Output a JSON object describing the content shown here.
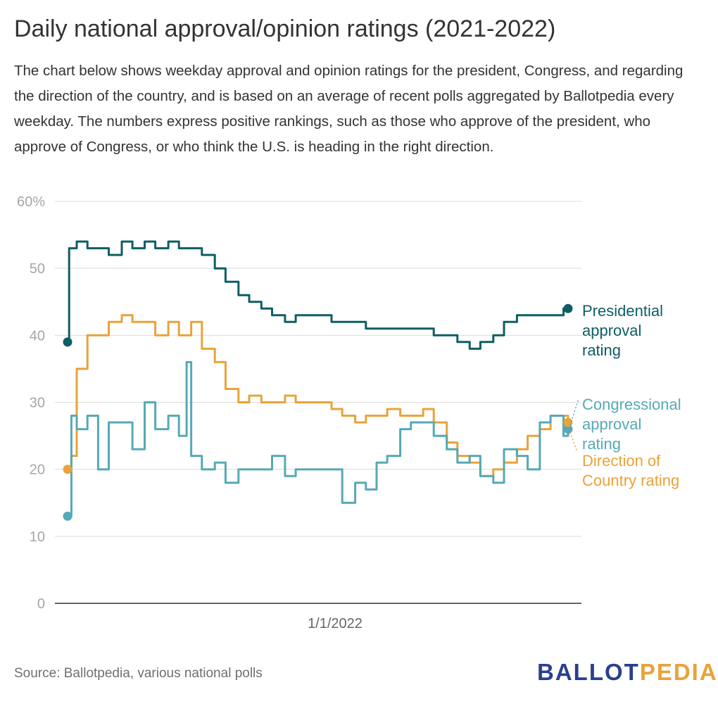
{
  "header": {
    "title": "Daily national approval/opinion ratings (2021-2022)",
    "description": "The chart below shows weekday approval and opinion ratings for the president, Congress, and regarding the direction of the country, and is based on an average of recent polls aggregated by Ballotpedia every weekday. The numbers express positive rankings, such as those who approve of the president, who approve of Congress, or who think the U.S. is heading in the right direction."
  },
  "footer": {
    "source": "Source: Ballotpedia, various national polls",
    "logo_part1": "BALLOT",
    "logo_part2": "PEDIA"
  },
  "chart_data": {
    "type": "line",
    "ylim": [
      0,
      60
    ],
    "y_ticks": [
      "0",
      "10",
      "20",
      "30",
      "40",
      "50",
      "60%"
    ],
    "x_tick_labels": [
      "1/1/2022"
    ],
    "grid": true,
    "series": [
      {
        "name": "Presidential approval rating",
        "color": "#0e5e64",
        "x": [
          "2021-01-20",
          "2021-01-22",
          "2021-02-01",
          "2021-02-15",
          "2021-03-01",
          "2021-03-15",
          "2021-04-01",
          "2021-04-15",
          "2021-05-01",
          "2021-05-15",
          "2021-06-01",
          "2021-06-15",
          "2021-07-01",
          "2021-07-15",
          "2021-08-01",
          "2021-08-15",
          "2021-09-01",
          "2021-09-15",
          "2021-10-01",
          "2021-10-15",
          "2021-11-01",
          "2021-11-15",
          "2021-12-01",
          "2021-12-15",
          "2022-01-01",
          "2022-01-15",
          "2022-02-01",
          "2022-02-15",
          "2022-03-01",
          "2022-03-15",
          "2022-04-01",
          "2022-04-15",
          "2022-05-01",
          "2022-05-15",
          "2022-06-01",
          "2022-06-15",
          "2022-07-01",
          "2022-07-15",
          "2022-08-01",
          "2022-08-15",
          "2022-09-01",
          "2022-09-15",
          "2022-10-01",
          "2022-10-15",
          "2022-11-01",
          "2022-11-07"
        ],
        "values": [
          39,
          53,
          54,
          53,
          53,
          52,
          54,
          53,
          54,
          53,
          54,
          53,
          53,
          52,
          50,
          48,
          46,
          45,
          44,
          43,
          42,
          43,
          43,
          43,
          42,
          42,
          42,
          41,
          41,
          41,
          41,
          41,
          41,
          40,
          40,
          39,
          38,
          39,
          40,
          42,
          43,
          43,
          43,
          43,
          44,
          44
        ]
      },
      {
        "name": "Congressional approval rating",
        "color": "#56a9b5",
        "x": [
          "2021-01-20",
          "2021-01-25",
          "2021-02-01",
          "2021-02-15",
          "2021-03-01",
          "2021-03-15",
          "2021-04-01",
          "2021-04-15",
          "2021-05-01",
          "2021-05-15",
          "2021-06-01",
          "2021-06-15",
          "2021-06-25",
          "2021-07-01",
          "2021-07-15",
          "2021-08-01",
          "2021-08-15",
          "2021-09-01",
          "2021-09-15",
          "2021-10-01",
          "2021-10-15",
          "2021-11-01",
          "2021-11-15",
          "2021-12-01",
          "2021-12-15",
          "2022-01-01",
          "2022-01-15",
          "2022-02-01",
          "2022-02-15",
          "2022-03-01",
          "2022-03-15",
          "2022-04-01",
          "2022-04-15",
          "2022-05-01",
          "2022-05-15",
          "2022-06-01",
          "2022-06-15",
          "2022-07-01",
          "2022-07-15",
          "2022-08-01",
          "2022-08-15",
          "2022-09-01",
          "2022-09-15",
          "2022-10-01",
          "2022-10-15",
          "2022-11-01",
          "2022-11-07"
        ],
        "values": [
          13,
          28,
          26,
          28,
          20,
          27,
          27,
          23,
          30,
          26,
          28,
          25,
          36,
          22,
          20,
          21,
          18,
          20,
          20,
          20,
          22,
          19,
          20,
          20,
          20,
          20,
          15,
          18,
          17,
          21,
          22,
          26,
          27,
          27,
          25,
          23,
          21,
          22,
          19,
          18,
          23,
          22,
          20,
          27,
          28,
          25,
          26
        ]
      },
      {
        "name": "Direction of Country rating",
        "color": "#e8a33a",
        "x": [
          "2021-01-20",
          "2021-01-25",
          "2021-02-01",
          "2021-02-15",
          "2021-03-01",
          "2021-03-15",
          "2021-04-01",
          "2021-04-15",
          "2021-05-01",
          "2021-05-15",
          "2021-06-01",
          "2021-06-15",
          "2021-07-01",
          "2021-07-15",
          "2021-08-01",
          "2021-08-15",
          "2021-09-01",
          "2021-09-15",
          "2021-10-01",
          "2021-10-15",
          "2021-11-01",
          "2021-11-15",
          "2021-12-01",
          "2021-12-15",
          "2022-01-01",
          "2022-01-15",
          "2022-02-01",
          "2022-02-15",
          "2022-03-01",
          "2022-03-15",
          "2022-04-01",
          "2022-04-15",
          "2022-05-01",
          "2022-05-15",
          "2022-06-01",
          "2022-06-15",
          "2022-07-01",
          "2022-07-15",
          "2022-08-01",
          "2022-08-15",
          "2022-09-01",
          "2022-09-15",
          "2022-10-01",
          "2022-10-15",
          "2022-11-01",
          "2022-11-07"
        ],
        "values": [
          20,
          22,
          35,
          40,
          40,
          42,
          43,
          42,
          42,
          40,
          42,
          40,
          42,
          38,
          36,
          32,
          30,
          31,
          30,
          30,
          31,
          30,
          30,
          30,
          29,
          28,
          27,
          28,
          28,
          29,
          28,
          28,
          29,
          27,
          24,
          22,
          21,
          19,
          20,
          21,
          23,
          25,
          26,
          28,
          28,
          27
        ]
      }
    ],
    "end_labels": [
      {
        "series": "Presidential approval rating",
        "lines": [
          "Presidential",
          "approval",
          "rating"
        ]
      },
      {
        "series": "Congressional approval rating",
        "lines": [
          "Congressional",
          "approval",
          "rating"
        ]
      },
      {
        "series": "Direction of Country rating",
        "lines": [
          "Direction of",
          "Country rating"
        ]
      }
    ]
  }
}
